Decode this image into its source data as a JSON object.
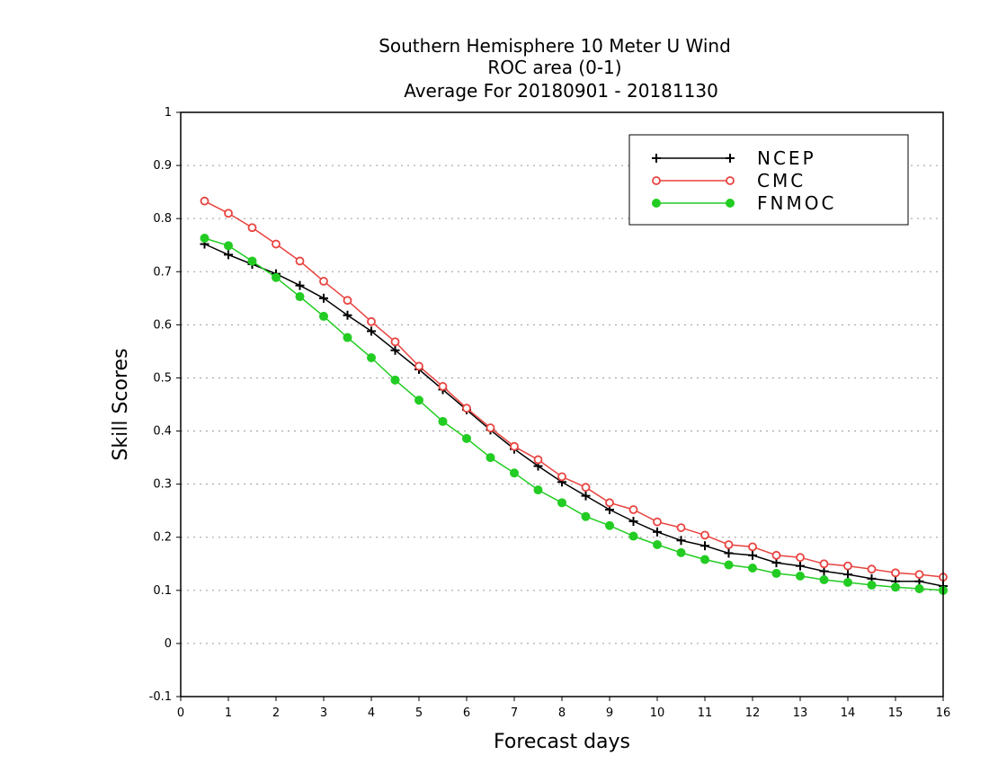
{
  "chart_data": {
    "type": "line",
    "title": [
      "Southern Hemisphere 10 Meter U Wind",
      "ROC area (0-1)",
      "Average For 20180901 - 20181130"
    ],
    "xlabel": "Forecast days",
    "ylabel": "Skill Scores",
    "xlim": [
      0,
      16
    ],
    "ylim": [
      -0.1,
      1
    ],
    "xticks": [
      "0",
      "1",
      "2",
      "3",
      "4",
      "5",
      "6",
      "7",
      "8",
      "9",
      "10",
      "11",
      "12",
      "13",
      "14",
      "15",
      "16"
    ],
    "yticks": [
      "-0.1",
      "0",
      "0.1",
      "0.2",
      "0.3",
      "0.4",
      "0.5",
      "0.6",
      "0.7",
      "0.8",
      "0.9",
      "1"
    ],
    "grid": true,
    "legend_position": "top-right",
    "x": [
      0.5,
      1,
      1.5,
      2,
      2.5,
      3,
      3.5,
      4,
      4.5,
      5,
      5.5,
      6,
      6.5,
      7,
      7.5,
      8,
      8.5,
      9,
      9.5,
      10,
      10.5,
      11,
      11.5,
      12,
      12.5,
      13,
      13.5,
      14,
      14.5,
      15,
      15.5,
      16
    ],
    "series": [
      {
        "name": "NCEP",
        "color": "#000000",
        "marker": "plus",
        "values": [
          0.752,
          0.732,
          0.714,
          0.696,
          0.674,
          0.65,
          0.618,
          0.588,
          0.552,
          0.516,
          0.478,
          0.44,
          0.402,
          0.366,
          0.334,
          0.304,
          0.278,
          0.252,
          0.23,
          0.21,
          0.194,
          0.184,
          0.17,
          0.166,
          0.152,
          0.146,
          0.136,
          0.13,
          0.122,
          0.117,
          0.117,
          0.108
        ]
      },
      {
        "name": "CMC",
        "color": "#e8433f",
        "marker": "open-circle",
        "values": [
          0.833,
          0.81,
          0.783,
          0.752,
          0.72,
          0.682,
          0.646,
          0.606,
          0.568,
          0.522,
          0.484,
          0.443,
          0.406,
          0.371,
          0.346,
          0.314,
          0.294,
          0.265,
          0.252,
          0.229,
          0.218,
          0.204,
          0.186,
          0.182,
          0.166,
          0.162,
          0.15,
          0.146,
          0.14,
          0.133,
          0.13,
          0.125
        ]
      },
      {
        "name": "FNMOC",
        "color": "#22cc22",
        "marker": "filled-circle",
        "values": [
          0.763,
          0.749,
          0.72,
          0.689,
          0.653,
          0.616,
          0.576,
          0.538,
          0.496,
          0.458,
          0.418,
          0.386,
          0.35,
          0.321,
          0.289,
          0.265,
          0.239,
          0.222,
          0.202,
          0.186,
          0.171,
          0.158,
          0.148,
          0.142,
          0.132,
          0.127,
          0.12,
          0.115,
          0.11,
          0.106,
          0.103,
          0.1
        ]
      }
    ]
  }
}
